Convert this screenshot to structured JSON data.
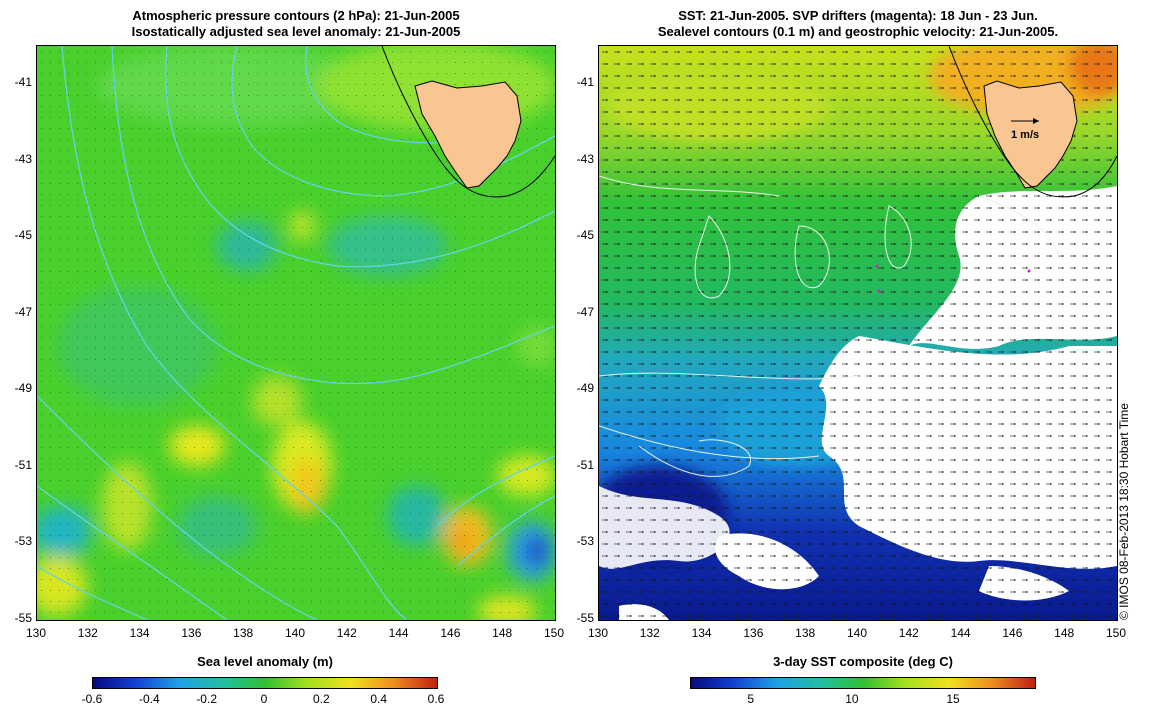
{
  "left_map": {
    "title_line1": "Atmospheric pressure contours (2 hPa): 21-Jun-2005",
    "title_line2": "Isostatically adjusted sea level anomaly: 21-Jun-2005",
    "colorbar_label": "Sea level anomaly (m)",
    "colorbar_ticks": [
      "-0.6",
      "-0.4",
      "-0.2",
      "0",
      "0.2",
      "0.4",
      "0.6"
    ],
    "colorbar_values": [
      -0.6,
      -0.4,
      -0.2,
      0,
      0.2,
      0.4,
      0.6
    ]
  },
  "right_map": {
    "title_line1": "SST: 21-Jun-2005. SVP drifters (magenta): 18 Jun - 23 Jun.",
    "title_line2": "Sealevel contours (0.1 m) and geostrophic velocity: 21-Jun-2005.",
    "velocity_scale_label": "1 m/s",
    "colorbar_label": "3-day SST composite (deg C)",
    "colorbar_ticks": [
      "5",
      "10",
      "15"
    ],
    "colorbar_values": [
      5,
      10,
      15
    ],
    "colorbar_range": [
      2,
      19
    ]
  },
  "axes": {
    "lon_ticks": [
      "130",
      "132",
      "134",
      "136",
      "138",
      "140",
      "142",
      "144",
      "146",
      "148",
      "150"
    ],
    "lat_ticks": [
      "-41",
      "-43",
      "-45",
      "-47",
      "-49",
      "-51",
      "-53",
      "-55"
    ],
    "lon_range": [
      130,
      150
    ],
    "lat_range": [
      -55,
      -40
    ]
  },
  "credit": "© IMOS 08-Feb-2013 18:30 Hobart Time",
  "colors": {
    "land": "#f9c590",
    "left_background": "#49d02c",
    "pressure_contour": "#62d4e0"
  }
}
